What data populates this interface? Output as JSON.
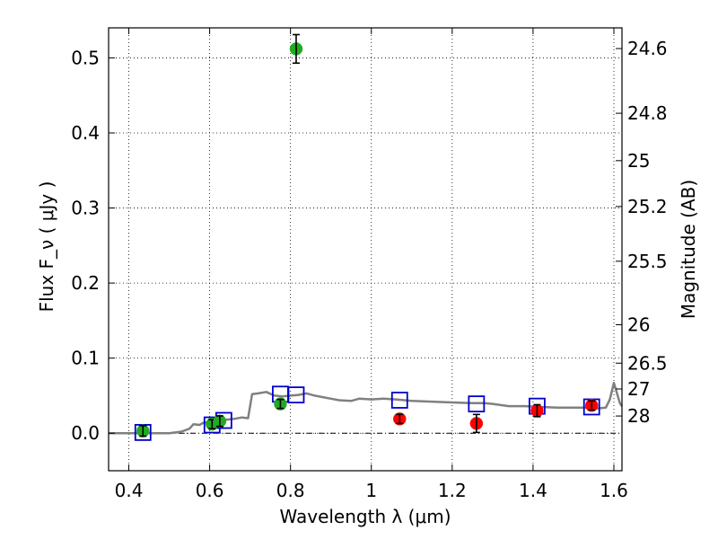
{
  "chart_data": {
    "type": "scatter",
    "xlabel": "Wavelength  λ (μm)",
    "ylabel": "Flux  F_ν  ( μJy )",
    "ylabel_right": "Magnitude (AB)",
    "xlim": [
      0.35,
      1.62
    ],
    "ylim": [
      -0.05,
      0.54
    ],
    "grid": true,
    "x_ticks": [
      0.4,
      0.6,
      0.8,
      1.0,
      1.2,
      1.4,
      1.6
    ],
    "x_tick_labels": [
      "0.4",
      "0.6",
      "0.8",
      "1",
      "1.2",
      "1.4",
      "1.6"
    ],
    "y_ticks": [
      0.0,
      0.1,
      0.2,
      0.3,
      0.4,
      0.5
    ],
    "y_tick_labels": [
      "0.0",
      "0.1",
      "0.2",
      "0.3",
      "0.4",
      "0.5"
    ],
    "right_ticks": [
      {
        "flux": 0.5124,
        "label": "24.6"
      },
      {
        "flux": 0.4262,
        "label": "24.8"
      },
      {
        "flux": 0.3631,
        "label": "25"
      },
      {
        "flux": 0.302,
        "label": "25.2"
      },
      {
        "flux": 0.2291,
        "label": "25.5"
      },
      {
        "flux": 0.1445,
        "label": "26"
      },
      {
        "flux": 0.0933,
        "label": "26.5"
      },
      {
        "flux": 0.0589,
        "label": "27"
      },
      {
        "flux": 0.0229,
        "label": "28"
      }
    ],
    "colors": {
      "green_points": "#22aa22",
      "red_points": "#ff0000",
      "model_boxes": "#0000cc",
      "template": "#808080",
      "grid": "#000000",
      "zero_line": "#000000"
    },
    "series": [
      {
        "marker": "green-circle",
        "points": [
          {
            "x": 0.435,
            "y": 0.003,
            "err": 0.007
          },
          {
            "x": 0.606,
            "y": 0.012,
            "err": 0.006
          },
          {
            "x": 0.625,
            "y": 0.016,
            "err": 0.007
          },
          {
            "x": 0.775,
            "y": 0.039,
            "err": 0.006
          },
          {
            "x": 0.814,
            "y": 0.512,
            "err": 0.019
          }
        ]
      },
      {
        "marker": "red-circle",
        "points": [
          {
            "x": 1.07,
            "y": 0.019,
            "err": 0.006
          },
          {
            "x": 1.26,
            "y": 0.013,
            "err": 0.012
          },
          {
            "x": 1.41,
            "y": 0.03,
            "err": 0.008
          },
          {
            "x": 1.545,
            "y": 0.037,
            "err": 0.006
          }
        ]
      },
      {
        "marker": "blue-open-square",
        "points": [
          {
            "x": 0.435,
            "y": 0.001
          },
          {
            "x": 0.606,
            "y": 0.011
          },
          {
            "x": 0.635,
            "y": 0.017
          },
          {
            "x": 0.775,
            "y": 0.052
          },
          {
            "x": 0.814,
            "y": 0.051
          },
          {
            "x": 1.07,
            "y": 0.044
          },
          {
            "x": 1.26,
            "y": 0.039
          },
          {
            "x": 1.41,
            "y": 0.036
          },
          {
            "x": 1.545,
            "y": 0.035
          }
        ]
      },
      {
        "marker": "gray-line",
        "points": [
          [
            0.35,
            0.0
          ],
          [
            0.5,
            0.0
          ],
          [
            0.53,
            0.002
          ],
          [
            0.55,
            0.006
          ],
          [
            0.56,
            0.012
          ],
          [
            0.575,
            0.011
          ],
          [
            0.585,
            0.014
          ],
          [
            0.6,
            0.015
          ],
          [
            0.62,
            0.017
          ],
          [
            0.64,
            0.018
          ],
          [
            0.66,
            0.019
          ],
          [
            0.68,
            0.021
          ],
          [
            0.695,
            0.02
          ],
          [
            0.705,
            0.052
          ],
          [
            0.72,
            0.053
          ],
          [
            0.74,
            0.055
          ],
          [
            0.76,
            0.05
          ],
          [
            0.78,
            0.049
          ],
          [
            0.8,
            0.05
          ],
          [
            0.82,
            0.051
          ],
          [
            0.84,
            0.053
          ],
          [
            0.86,
            0.05
          ],
          [
            0.88,
            0.048
          ],
          [
            0.9,
            0.046
          ],
          [
            0.92,
            0.044
          ],
          [
            0.95,
            0.043
          ],
          [
            0.97,
            0.046
          ],
          [
            1.0,
            0.045
          ],
          [
            1.03,
            0.046
          ],
          [
            1.06,
            0.045
          ],
          [
            1.1,
            0.043
          ],
          [
            1.15,
            0.042
          ],
          [
            1.2,
            0.041
          ],
          [
            1.25,
            0.04
          ],
          [
            1.28,
            0.04
          ],
          [
            1.3,
            0.039
          ],
          [
            1.34,
            0.036
          ],
          [
            1.38,
            0.036
          ],
          [
            1.42,
            0.035
          ],
          [
            1.46,
            0.034
          ],
          [
            1.5,
            0.034
          ],
          [
            1.53,
            0.034
          ],
          [
            1.56,
            0.033
          ],
          [
            1.58,
            0.034
          ],
          [
            1.59,
            0.045
          ],
          [
            1.6,
            0.067
          ],
          [
            1.615,
            0.04
          ],
          [
            1.62,
            0.036
          ]
        ]
      }
    ]
  }
}
